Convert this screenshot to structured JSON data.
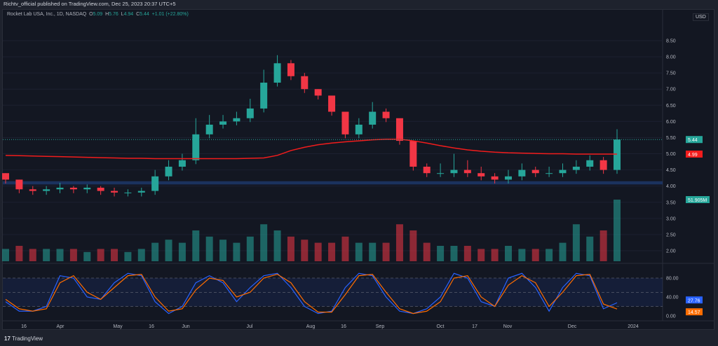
{
  "publisher": "Richtv_official published on TradingView.com, Dec 25, 2023 20:37 UTC+5",
  "legend": {
    "symbol": "Rocket Lab USA, Inc., 1D, NASDAQ",
    "o_label": "O",
    "o": "5.09",
    "h_label": "H",
    "h": "5.76",
    "l_label": "L",
    "l": "4.94",
    "c_label": "C",
    "c": "5.44",
    "change": "+1.01 (+22.80%)"
  },
  "currency": "USD",
  "footer_brand": "TradingView",
  "colors": {
    "up": "#26a69a",
    "down": "#f23645",
    "ma": "#f21c1c",
    "zone": "#1e3a6e",
    "k": "#2962ff",
    "d": "#ff6d00",
    "bg": "#131722"
  },
  "chart_data": [
    {
      "type": "candlestick",
      "interval": "1D (shown approximated weekly)",
      "ylim": [
        1.7,
        8.8
      ],
      "y_ticks": [
        "8.50",
        "8.00",
        "7.50",
        "7.00",
        "6.50",
        "6.00",
        "5.50",
        "5.00",
        "4.50",
        "4.00",
        "3.50",
        "3.00",
        "2.50",
        "2.00"
      ],
      "x_ticks": [
        "16",
        "Apr",
        "May",
        "16",
        "Jun",
        "Jul",
        "Aug",
        "16",
        "Sep",
        "Oct",
        "17",
        "Nov",
        "Dec",
        "2024"
      ],
      "closes": [
        4.2,
        3.9,
        3.85,
        3.9,
        3.95,
        3.9,
        3.95,
        3.85,
        3.8,
        3.8,
        3.85,
        4.3,
        4.6,
        4.8,
        5.6,
        5.9,
        6.0,
        6.1,
        6.4,
        7.2,
        7.8,
        7.4,
        7.0,
        6.8,
        6.3,
        5.6,
        5.9,
        6.3,
        6.1,
        5.4,
        4.6,
        4.4,
        4.4,
        4.5,
        4.4,
        4.3,
        4.2,
        4.3,
        4.5,
        4.4,
        4.4,
        4.5,
        4.6,
        4.8,
        4.5,
        5.44
      ],
      "highs": [
        4.4,
        4.2,
        4.0,
        4.0,
        4.1,
        4.0,
        4.05,
        4.0,
        3.95,
        3.9,
        3.95,
        4.5,
        4.8,
        5.0,
        6.1,
        6.2,
        6.2,
        6.3,
        6.7,
        7.6,
        8.05,
        7.9,
        7.5,
        7.0,
        6.6,
        6.0,
        6.1,
        6.6,
        6.4,
        5.8,
        4.9,
        4.7,
        4.7,
        5.0,
        4.8,
        4.6,
        4.4,
        4.5,
        4.7,
        4.6,
        4.6,
        4.7,
        4.8,
        4.95,
        4.9,
        5.76
      ],
      "ma_line": {
        "label_value": "4.99",
        "values": [
          4.95,
          4.94,
          4.93,
          4.92,
          4.91,
          4.9,
          4.89,
          4.88,
          4.87,
          4.86,
          4.86,
          4.85,
          4.85,
          4.85,
          4.85,
          4.85,
          4.85,
          4.85,
          4.86,
          4.87,
          4.95,
          5.1,
          5.2,
          5.28,
          5.33,
          5.37,
          5.4,
          5.43,
          5.45,
          5.45,
          5.4,
          5.33,
          5.25,
          5.18,
          5.12,
          5.08,
          5.05,
          5.03,
          5.02,
          5.01,
          5.0,
          5.0,
          4.99,
          4.99,
          4.99,
          4.99
        ]
      },
      "support_zone": [
        4.05,
        4.15
      ],
      "last_price": "5.44",
      "volume": {
        "last_label": "51.905M",
        "values": [
          0.2,
          0.25,
          0.2,
          0.2,
          0.2,
          0.2,
          0.15,
          0.2,
          0.2,
          0.15,
          0.2,
          0.3,
          0.35,
          0.3,
          0.5,
          0.4,
          0.35,
          0.3,
          0.4,
          0.6,
          0.5,
          0.4,
          0.35,
          0.3,
          0.3,
          0.4,
          0.3,
          0.3,
          0.3,
          0.6,
          0.5,
          0.3,
          0.25,
          0.25,
          0.25,
          0.2,
          0.2,
          0.25,
          0.2,
          0.2,
          0.2,
          0.3,
          0.6,
          0.4,
          0.5,
          1.0
        ]
      }
    },
    {
      "type": "line",
      "indicator": "stochastic",
      "ylim": [
        0,
        100
      ],
      "y_ticks": [
        "80.00",
        "40.00",
        "0.00"
      ],
      "bands": [
        80,
        50,
        20
      ],
      "series": [
        {
          "label_value": "27.76",
          "values": [
            30,
            10,
            10,
            20,
            85,
            80,
            40,
            35,
            70,
            90,
            85,
            30,
            5,
            20,
            70,
            85,
            70,
            30,
            60,
            85,
            90,
            60,
            20,
            5,
            10,
            60,
            90,
            85,
            40,
            10,
            5,
            15,
            40,
            90,
            80,
            30,
            20,
            80,
            90,
            60,
            10,
            60,
            90,
            85,
            15,
            27.76
          ]
        },
        {
          "label_value": "14.57",
          "values": [
            35,
            15,
            10,
            15,
            70,
            85,
            50,
            35,
            60,
            85,
            88,
            40,
            10,
            15,
            55,
            80,
            75,
            40,
            50,
            80,
            88,
            70,
            30,
            8,
            8,
            45,
            85,
            88,
            50,
            15,
            5,
            10,
            30,
            80,
            85,
            40,
            20,
            65,
            85,
            70,
            20,
            50,
            85,
            88,
            25,
            14.57
          ]
        }
      ]
    }
  ]
}
